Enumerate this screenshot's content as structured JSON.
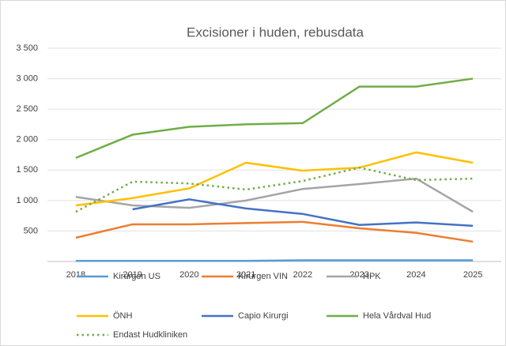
{
  "chart_data": {
    "type": "line",
    "title": "Excisioner i huden, rebusdata",
    "categories": [
      "2018",
      "2019",
      "2020",
      "2021",
      "2022",
      "2023",
      "2024",
      "2025"
    ],
    "series": [
      {
        "name": "Kirurgen US",
        "color": "#5b9bd5",
        "values": [
          10,
          10,
          10,
          10,
          20,
          20,
          20,
          20
        ]
      },
      {
        "name": "Kirurgen VIN",
        "color": "#ed7d31",
        "values": [
          390,
          610,
          610,
          630,
          650,
          545,
          470,
          325
        ]
      },
      {
        "name": "HPK",
        "color": "#a5a5a5",
        "values": [
          1060,
          920,
          880,
          1000,
          1190,
          1270,
          1360,
          815
        ]
      },
      {
        "name": "ÖNH",
        "color": "#ffc000",
        "values": [
          920,
          1040,
          1200,
          1620,
          1490,
          1540,
          1790,
          1620
        ]
      },
      {
        "name": "Capio Kirurgi",
        "color": "#4472c4",
        "values": [
          null,
          855,
          1020,
          870,
          780,
          600,
          640,
          585
        ]
      },
      {
        "name": "Hela Vårdval Hud",
        "color": "#70ad47",
        "values": [
          1700,
          2080,
          2210,
          2250,
          2270,
          2870,
          2870,
          3000
        ]
      },
      {
        "name": "Endast Hudkliniken",
        "color": "#70ad47",
        "dash": "dotted",
        "values": [
          815,
          1310,
          1280,
          1180,
          1320,
          1540,
          1335,
          1360
        ]
      }
    ],
    "ylim": [
      0,
      3500
    ],
    "yticks": [
      500,
      {
        "value": 1000,
        "label": "1 000"
      },
      {
        "value": 1500,
        "label": "1 500"
      },
      {
        "value": 2000,
        "label": "2 000"
      },
      {
        "value": 2500,
        "label": "2 500"
      },
      {
        "value": 3000,
        "label": "3 000"
      },
      {
        "value": 3500,
        "label": "3 500"
      }
    ],
    "grid": true,
    "legend": "bottom"
  }
}
